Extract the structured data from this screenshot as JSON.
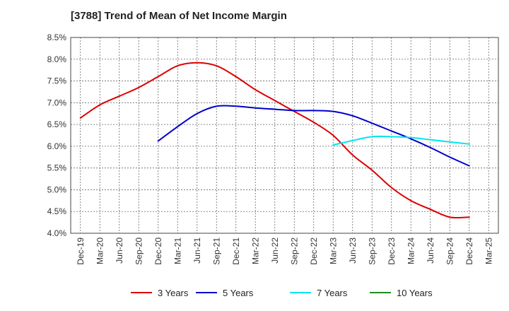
{
  "chart_data": {
    "type": "line",
    "title": "[3788]  Trend of Mean of Net Income Margin",
    "xlabel": "",
    "ylabel": "",
    "ylim": [
      4.0,
      8.5
    ],
    "y_ticks": [
      "4.0%",
      "4.5%",
      "5.0%",
      "5.5%",
      "6.0%",
      "6.5%",
      "7.0%",
      "7.5%",
      "8.0%",
      "8.5%"
    ],
    "categories": [
      "Dec-19",
      "Mar-20",
      "Jun-20",
      "Sep-20",
      "Dec-20",
      "Mar-21",
      "Jun-21",
      "Sep-21",
      "Dec-21",
      "Mar-22",
      "Jun-22",
      "Sep-22",
      "Dec-22",
      "Mar-23",
      "Jun-23",
      "Sep-23",
      "Dec-23",
      "Mar-24",
      "Jun-24",
      "Sep-24",
      "Dec-24",
      "Mar-25"
    ],
    "grid": true,
    "legend_position": "bottom",
    "series": [
      {
        "name": "3 Years",
        "color": "#dd0000",
        "values": [
          6.65,
          6.95,
          7.15,
          7.35,
          7.6,
          7.85,
          7.92,
          7.85,
          7.6,
          7.3,
          7.05,
          6.8,
          6.55,
          6.25,
          5.8,
          5.45,
          5.05,
          4.75,
          4.55,
          4.37,
          4.37,
          null
        ]
      },
      {
        "name": "5 Years",
        "color": "#0000cc",
        "values": [
          null,
          null,
          null,
          null,
          6.12,
          6.45,
          6.75,
          6.92,
          6.92,
          6.88,
          6.85,
          6.82,
          6.82,
          6.8,
          6.7,
          6.53,
          6.35,
          6.17,
          5.97,
          5.75,
          5.55,
          null
        ]
      },
      {
        "name": "7 Years",
        "color": "#00e5ee",
        "values": [
          null,
          null,
          null,
          null,
          null,
          null,
          null,
          null,
          null,
          null,
          null,
          null,
          null,
          6.03,
          6.13,
          6.22,
          6.22,
          6.2,
          6.15,
          6.1,
          6.05,
          null
        ]
      },
      {
        "name": "10 Years",
        "color": "#228b22",
        "values": [
          null,
          null,
          null,
          null,
          null,
          null,
          null,
          null,
          null,
          null,
          null,
          null,
          null,
          null,
          null,
          null,
          null,
          null,
          null,
          null,
          null,
          null
        ]
      }
    ]
  }
}
